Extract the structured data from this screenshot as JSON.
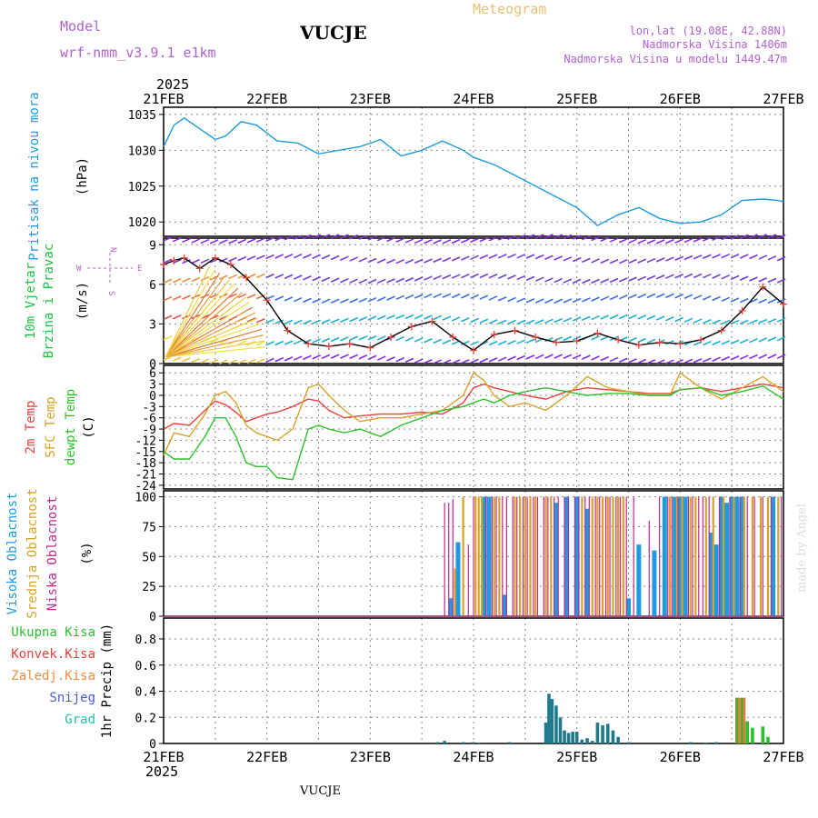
{
  "header": {
    "model_label": "Model",
    "model_name": "wrf-nmm_v3.9.1 e1km",
    "station": "VUCJE",
    "chart_type_title": "Meteogram",
    "lonlat": "lon,lat (19.08E, 42.88N)",
    "elevation": "Nadmorska Visina 1406m",
    "model_elevation": "Nadmorska Visina u modelu 1449.47m",
    "footer_station": "VUCJE",
    "watermark": "made by Angel",
    "year": "2025"
  },
  "colors": {
    "pressure": "#1e9be0",
    "temp2m": "#e8413c",
    "sfc_temp": "#d9a227",
    "dewpt": "#2cc12c",
    "high_cloud": "#1e9be0",
    "mid_cloud": "#d9a227",
    "low_cloud": "#c0288f",
    "wind_speed_marker": "#e8413c"
  },
  "chart_data": [
    {
      "type": "line",
      "panel": "pressure",
      "ylabel_lines": [
        "Pritisak na nivou mora",
        "(hPa)"
      ],
      "x_ticks": [
        "21FEB",
        "22FEB",
        "23FEB",
        "24FEB",
        "25FEB",
        "26FEB",
        "27FEB"
      ],
      "ylim": [
        1018,
        1036
      ],
      "y_ticks": [
        1020,
        1025,
        1030,
        1035
      ],
      "x_days": [
        0,
        0.1,
        0.2,
        0.35,
        0.5,
        0.6,
        0.75,
        0.9,
        1.1,
        1.3,
        1.5,
        1.7,
        1.9,
        2.1,
        2.3,
        2.5,
        2.7,
        2.9,
        3.0,
        3.2,
        3.4,
        3.6,
        3.8,
        4.0,
        4.2,
        4.4,
        4.6,
        4.8,
        5.0,
        5.2,
        5.4,
        5.6,
        5.8,
        5.95,
        6.0
      ],
      "series": [
        {
          "values": [
            1030.5,
            1033.5,
            1034.5,
            1033,
            1031.5,
            1032,
            1034,
            1033.5,
            1031.3,
            1031,
            1029.5,
            1030,
            1030.5,
            1031.5,
            1029.2,
            1030,
            1031.3,
            1030,
            1029,
            1028,
            1026.5,
            1025,
            1023.5,
            1022,
            1019.5,
            1021,
            1022,
            1020.5,
            1019.8,
            1020,
            1021,
            1023,
            1023.2,
            1023,
            1022.8
          ]
        }
      ],
      "grid": true
    },
    {
      "type": "line",
      "panel": "wind",
      "ylabel_lines": [
        "10m Vjetar",
        "Brzina i Pravac",
        "(m/s)"
      ],
      "compass": [
        "N",
        "W",
        "E",
        "S"
      ],
      "ylim": [
        0,
        9.5
      ],
      "y_ticks": [
        0,
        3,
        6,
        9
      ],
      "x_days": [
        0,
        0.1,
        0.2,
        0.35,
        0.5,
        0.65,
        0.8,
        1.0,
        1.2,
        1.4,
        1.6,
        1.8,
        2.0,
        2.2,
        2.4,
        2.6,
        2.8,
        3.0,
        3.2,
        3.4,
        3.6,
        3.8,
        4.0,
        4.2,
        4.4,
        4.6,
        4.8,
        5.0,
        5.2,
        5.4,
        5.6,
        5.8,
        6.0
      ],
      "series": [
        {
          "values": [
            7.5,
            7.8,
            8.0,
            7.2,
            8.0,
            7.5,
            6.5,
            4.8,
            2.5,
            1.5,
            1.3,
            1.5,
            1.2,
            2.0,
            2.8,
            3.2,
            2.0,
            1.0,
            2.2,
            2.5,
            2.0,
            1.6,
            1.7,
            2.3,
            1.8,
            1.4,
            1.6,
            1.5,
            1.8,
            2.5,
            4.0,
            5.8,
            4.5
          ]
        }
      ],
      "grid": true
    },
    {
      "type": "line",
      "panel": "temperature",
      "ylabel_lines": [
        "2m Temp",
        "SFC Temp",
        "dewpt Temp",
        "(C)"
      ],
      "ylim": [
        -25,
        8
      ],
      "y_ticks": [
        -24,
        -21,
        -18,
        -15,
        -12,
        -9,
        -6,
        -3,
        0,
        3,
        6
      ],
      "x_days": [
        0,
        0.1,
        0.25,
        0.4,
        0.5,
        0.6,
        0.7,
        0.8,
        0.9,
        1.0,
        1.1,
        1.25,
        1.4,
        1.5,
        1.6,
        1.75,
        1.9,
        2.1,
        2.3,
        2.5,
        2.7,
        2.9,
        3.0,
        3.1,
        3.2,
        3.35,
        3.5,
        3.7,
        3.9,
        4.1,
        4.3,
        4.5,
        4.7,
        4.9,
        5.0,
        5.2,
        5.4,
        5.6,
        5.8,
        6.0
      ],
      "series": [
        {
          "name": "2m Temp",
          "values": [
            -9,
            -7.5,
            -8,
            -4,
            -1.5,
            -2.5,
            -4.5,
            -7,
            -6,
            -5,
            -4.5,
            -3,
            -1,
            -1.5,
            -4,
            -6,
            -5.5,
            -5,
            -5,
            -4.5,
            -5,
            -2,
            2,
            3,
            2,
            1,
            0,
            -1,
            1,
            2,
            1.5,
            1,
            0.5,
            0.5,
            1.5,
            2,
            1,
            2,
            3,
            2
          ]
        },
        {
          "name": "SFC Temp",
          "values": [
            -16,
            -10,
            -11,
            -5,
            0,
            1,
            -2,
            -8,
            -10,
            -11,
            -12,
            -9,
            2,
            3,
            0,
            -4,
            -7,
            -6,
            -6,
            -5,
            -4,
            0,
            6,
            4,
            0,
            -3,
            -2,
            -4,
            0,
            5,
            2,
            1,
            0,
            0,
            6,
            2,
            -1,
            2,
            5,
            1
          ]
        },
        {
          "name": "dewpt Temp",
          "values": [
            -15,
            -17,
            -17,
            -11,
            -6,
            -6,
            -11,
            -18,
            -19,
            -19,
            -22,
            -22.5,
            -9,
            -8,
            -9,
            -10,
            -9,
            -11,
            -8,
            -6,
            -4,
            -3,
            -2,
            -1,
            -2,
            0,
            1,
            2,
            1,
            0,
            0.5,
            0.5,
            0,
            0,
            1.5,
            2,
            0,
            1,
            2.5,
            -1
          ]
        }
      ],
      "grid": true
    },
    {
      "type": "bar",
      "panel": "cloud",
      "ylabel_lines": [
        "Visoka Oblacnost",
        "Srednja Oblacnost",
        "Niska Oblacnost",
        "(%)"
      ],
      "ylim": [
        0,
        105
      ],
      "y_ticks": [
        0,
        25,
        50,
        75,
        100
      ],
      "series": [
        {
          "name": "Visoka Oblacnost",
          "x_days": [
            2.78,
            2.85,
            3.1,
            3.15,
            3.3,
            3.8,
            3.9,
            4.0,
            4.1,
            4.5,
            4.6,
            4.75,
            4.85,
            4.95,
            5.0,
            5.05,
            5.3,
            5.35,
            5.4,
            5.45,
            5.5,
            5.55,
            5.6,
            5.9
          ],
          "values": [
            15,
            62,
            100,
            100,
            18,
            95,
            100,
            100,
            90,
            15,
            60,
            55,
            100,
            100,
            100,
            100,
            70,
            60,
            100,
            95,
            100,
            100,
            100,
            100
          ]
        },
        {
          "name": "Srednja Oblacnost",
          "x_days": [
            2.82,
            2.9,
            3.02,
            3.05,
            3.08,
            3.2,
            3.25,
            3.4,
            3.45,
            3.5,
            3.55,
            3.6,
            3.7,
            3.75,
            4.05,
            4.15,
            4.2,
            4.25,
            4.3,
            4.35,
            4.4,
            4.45,
            4.9,
            4.97,
            5.02,
            5.1,
            5.15,
            5.25,
            5.32,
            5.42,
            5.52,
            5.62,
            5.7,
            5.78,
            5.85,
            5.95
          ],
          "values": [
            40,
            100,
            100,
            100,
            100,
            100,
            100,
            100,
            100,
            100,
            100,
            100,
            100,
            100,
            100,
            100,
            100,
            100,
            100,
            100,
            100,
            100,
            100,
            100,
            100,
            100,
            100,
            100,
            100,
            100,
            100,
            100,
            100,
            100,
            100,
            100
          ]
        },
        {
          "name": "Niska Oblacnost",
          "x_days": [
            2.72,
            2.76,
            2.8,
            2.95,
            3.0,
            3.12,
            3.18,
            3.22,
            3.28,
            3.32,
            3.38,
            3.42,
            3.48,
            3.52,
            3.58,
            3.62,
            3.68,
            3.72,
            3.78,
            3.82,
            3.88,
            3.92,
            3.98,
            4.02,
            4.08,
            4.12,
            4.18,
            4.22,
            4.28,
            4.32,
            4.38,
            4.42,
            4.48,
            4.55,
            4.7,
            4.8,
            4.88,
            4.92,
            4.98,
            5.08,
            5.12,
            5.18,
            5.22,
            5.28,
            5.38,
            5.48,
            5.58,
            5.65,
            5.72,
            5.8,
            5.88,
            5.98
          ],
          "values": [
            95,
            95,
            98,
            60,
            100,
            100,
            100,
            100,
            100,
            100,
            100,
            100,
            100,
            100,
            100,
            100,
            100,
            100,
            100,
            100,
            100,
            100,
            100,
            100,
            100,
            100,
            100,
            100,
            100,
            100,
            100,
            100,
            100,
            100,
            80,
            100,
            100,
            100,
            100,
            100,
            100,
            100,
            100,
            100,
            100,
            100,
            100,
            100,
            100,
            100,
            100,
            100
          ]
        }
      ],
      "grid": true
    },
    {
      "type": "bar",
      "panel": "precip",
      "ylabel_lines": [
        "1hr Precip (mm)"
      ],
      "legend": [
        "Ukupna Kisa",
        "Konvek.Kisa",
        "Zaledj.Kisa",
        "Snijeg",
        "Grad"
      ],
      "legend_colors": [
        "#2cc12c",
        "#e8413c",
        "#f08c3c",
        "#4a5ad8",
        "#20c4a4"
      ],
      "ylim": [
        0,
        0.96
      ],
      "y_ticks": [
        0,
        0.2,
        0.4,
        0.6,
        0.8
      ],
      "series": [
        {
          "name": "Snijeg",
          "x_days": [
            2.65,
            2.72,
            2.9,
            3.0,
            3.05,
            3.35,
            3.7,
            3.73,
            3.76,
            3.8,
            3.84,
            3.88,
            3.92,
            3.96,
            4.0,
            4.05,
            4.1,
            4.15,
            4.2,
            4.25,
            4.3,
            4.35,
            4.4,
            4.5,
            5.1,
            5.25,
            5.35
          ],
          "values": [
            0.01,
            0.02,
            0.01,
            0.01,
            0.005,
            0.01,
            0.16,
            0.38,
            0.34,
            0.29,
            0.2,
            0.1,
            0.08,
            0.09,
            0.09,
            0.03,
            0.04,
            0.02,
            0.16,
            0.14,
            0.15,
            0.1,
            0.05,
            0.01,
            0.01,
            0.005,
            0.01
          ]
        },
        {
          "name": "Ukupna Kisa",
          "x_days": [
            5.55,
            5.6,
            5.65,
            5.7,
            5.8,
            5.85
          ],
          "values": [
            0.35,
            0.35,
            0.17,
            0.12,
            0.13,
            0.05
          ]
        }
      ],
      "grid": true
    }
  ]
}
